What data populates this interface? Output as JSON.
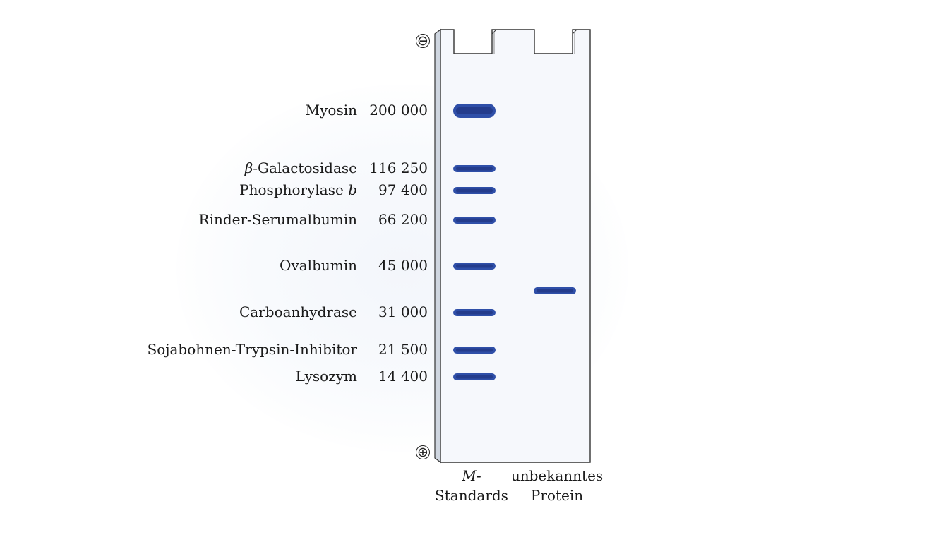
{
  "electrodes": {
    "top": "⊖",
    "bottom": "⊕"
  },
  "markers": [
    {
      "name": "Myosin",
      "mass": "200 000"
    },
    {
      "name": "β-Galactosidase",
      "mass": "116 250"
    },
    {
      "name": "Phosphorylase b",
      "mass": "97 400"
    },
    {
      "name": "Rinder-Serumalbumin",
      "mass": "66 200"
    },
    {
      "name": "Ovalbumin",
      "mass": "45 000"
    },
    {
      "name": "Carboanhydrase",
      "mass": "31 000"
    },
    {
      "name": "Sojabohnen-Trypsin-Inhibitor",
      "mass": "21 500"
    },
    {
      "name": "Lysozym",
      "mass": "14 400"
    }
  ],
  "lanes": [
    {
      "line1": "M-",
      "line2": "Standards"
    },
    {
      "line1": "unbekanntes",
      "line2": "Protein"
    }
  ],
  "colors": {
    "band": "#2f4fa8",
    "band_core": "#243c8c",
    "gel": "#f6f8fc",
    "outline": "#333333"
  }
}
